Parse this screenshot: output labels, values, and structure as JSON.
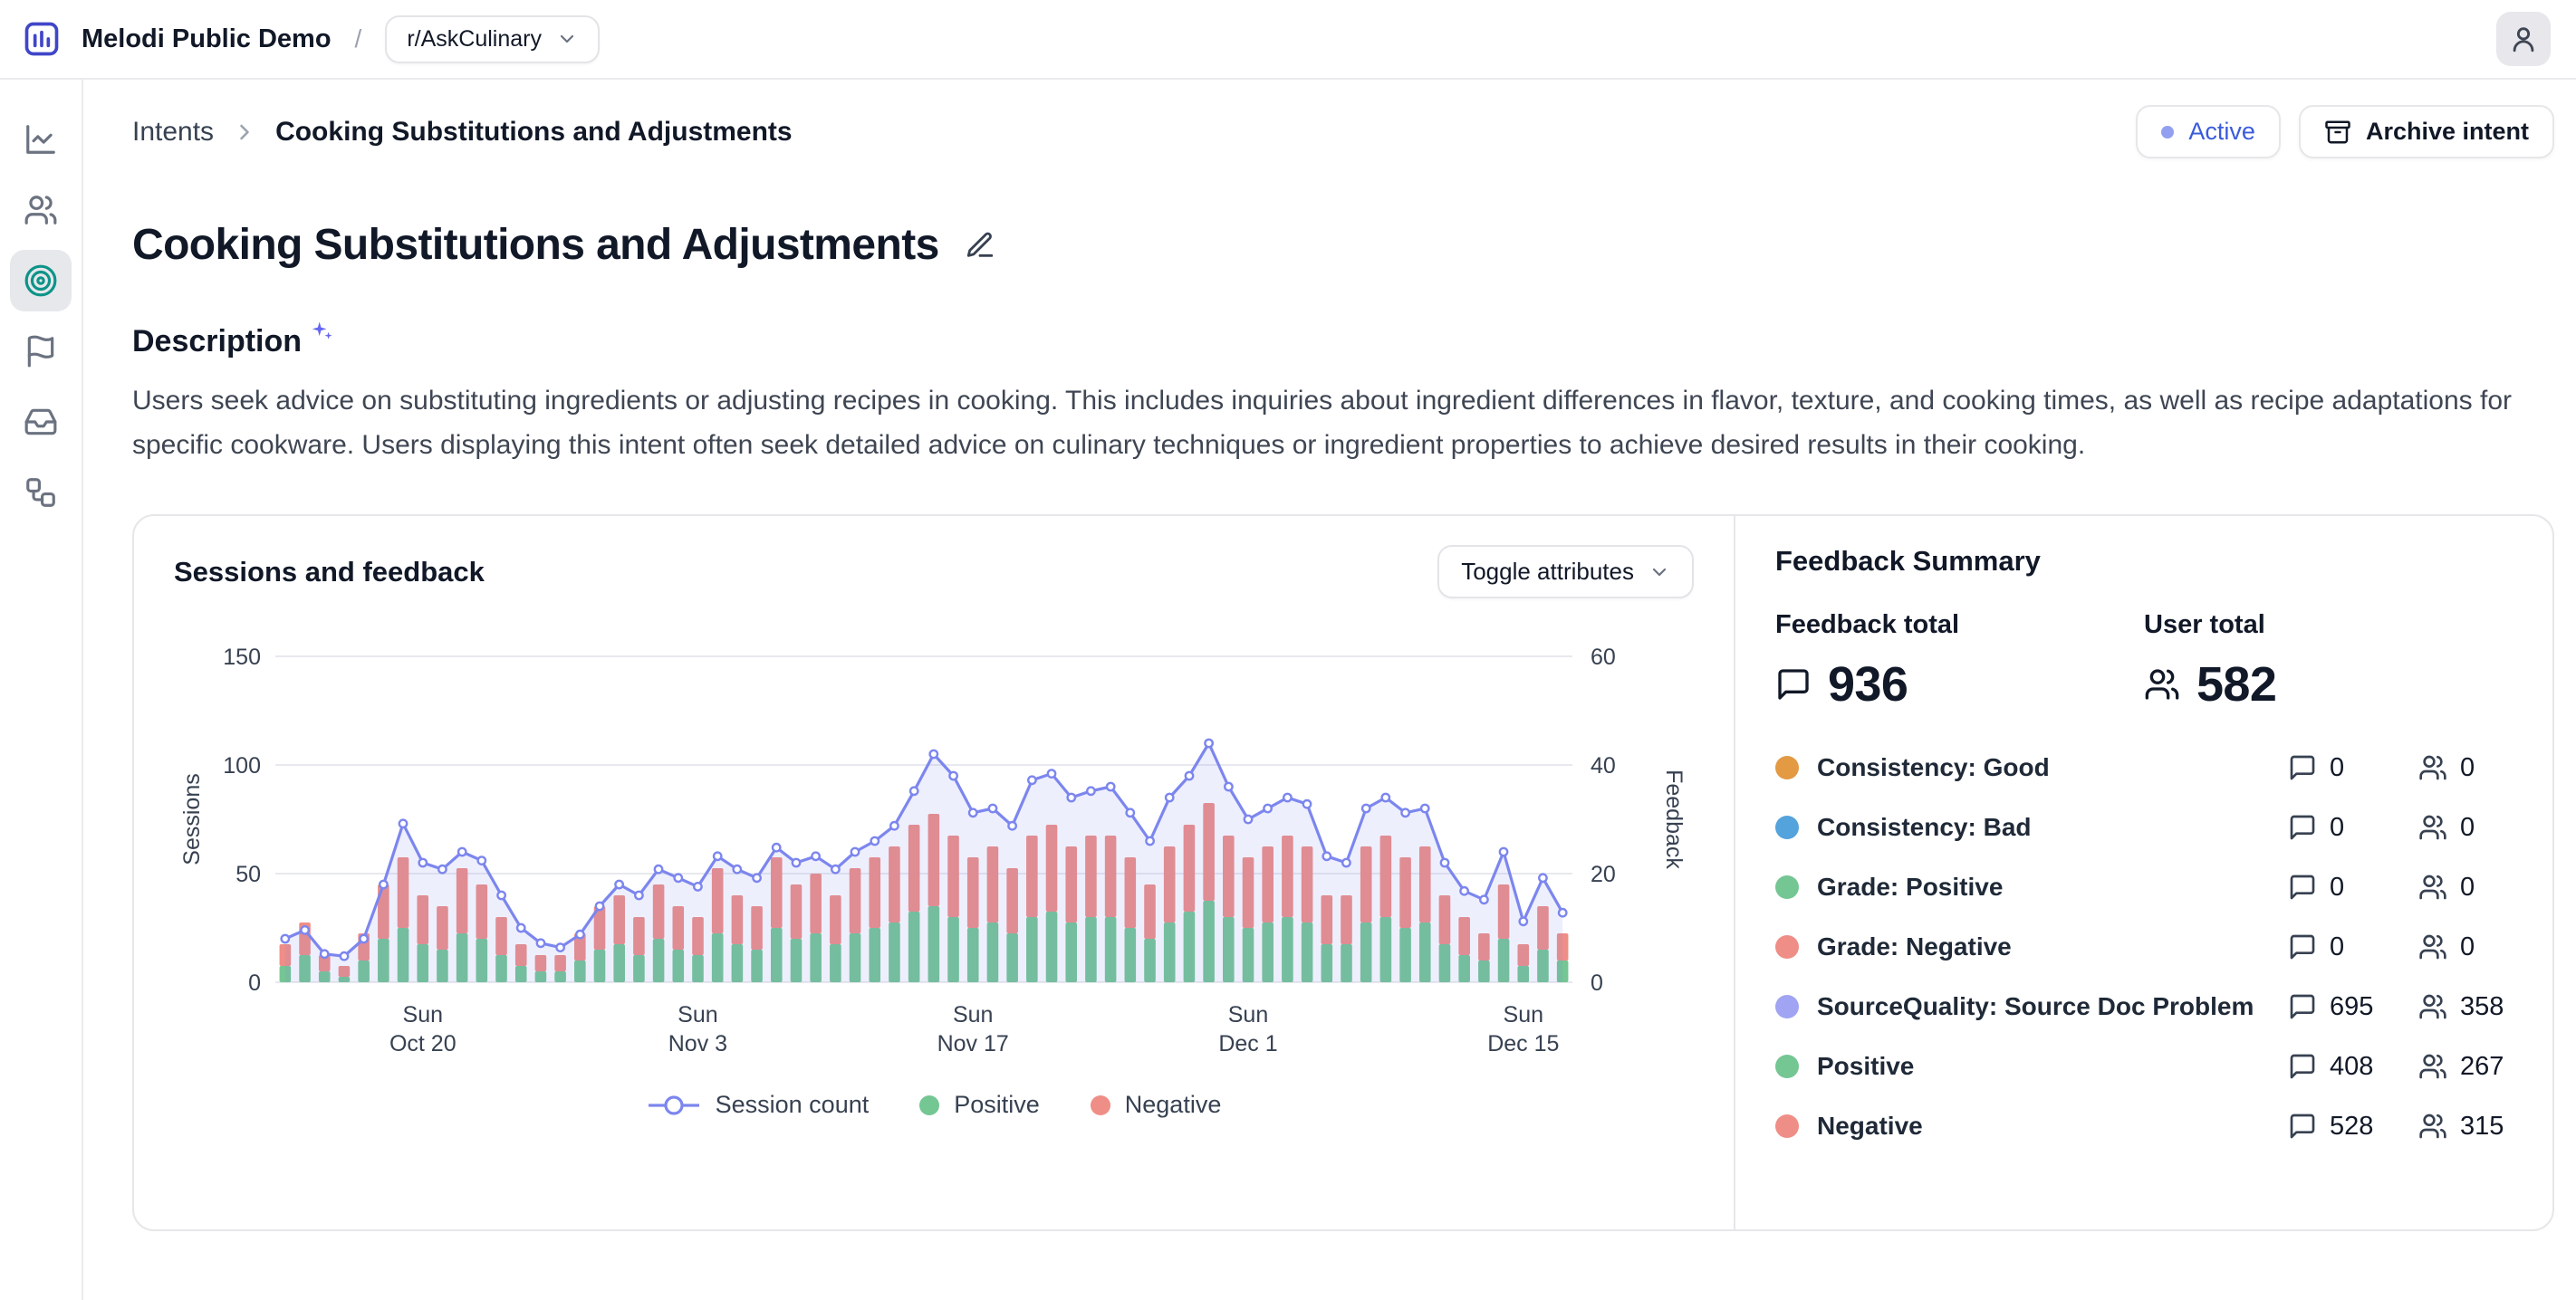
{
  "topbar": {
    "app_name": "Melodi Public Demo",
    "separator": "/",
    "project": "r/AskCulinary"
  },
  "sidebar": {
    "items": [
      {
        "name": "analytics",
        "active": false
      },
      {
        "name": "users",
        "active": false
      },
      {
        "name": "intents",
        "active": true
      },
      {
        "name": "flags",
        "active": false
      },
      {
        "name": "inbox",
        "active": false
      },
      {
        "name": "workflows",
        "active": false
      }
    ]
  },
  "breadcrumb": {
    "parent": "Intents",
    "current": "Cooking Substitutions and Adjustments"
  },
  "actions": {
    "status": "Active",
    "archive": "Archive intent"
  },
  "page": {
    "title": "Cooking Substitutions and Adjustments"
  },
  "description": {
    "heading": "Description",
    "body": "Users seek advice on substituting ingredients or adjusting recipes in cooking. This includes inquiries about ingredient differences in flavor, texture, and cooking times, as well as recipe adaptations for specific cookware. Users displaying this intent often seek detailed advice on culinary techniques or ingredient properties to achieve desired results in their cooking."
  },
  "sessions_card": {
    "title": "Sessions and feedback",
    "toggle": "Toggle attributes"
  },
  "legend": [
    {
      "label": "Session count",
      "marker": "line-circle",
      "color": "#7c86ee"
    },
    {
      "label": "Positive",
      "marker": "dot",
      "color": "#74c693"
    },
    {
      "label": "Negative",
      "marker": "dot",
      "color": "#ef8e86"
    }
  ],
  "feedback_summary": {
    "heading": "Feedback Summary",
    "feedback_total": {
      "label": "Feedback total",
      "value": "936",
      "icon": "message-icon"
    },
    "user_total": {
      "label": "User total",
      "value": "582",
      "icon": "users-icon"
    },
    "rows": [
      {
        "label": "Consistency: Good",
        "color": "#e39a43",
        "feedback": "0",
        "users": "0"
      },
      {
        "label": "Consistency: Bad",
        "color": "#54a3dc",
        "feedback": "0",
        "users": "0"
      },
      {
        "label": "Grade: Positive",
        "color": "#74c693",
        "feedback": "0",
        "users": "0"
      },
      {
        "label": "Grade: Negative",
        "color": "#ef8e86",
        "feedback": "0",
        "users": "0"
      },
      {
        "label": "SourceQuality: Source Doc Problem",
        "color": "#a0a4f2",
        "feedback": "695",
        "users": "358"
      },
      {
        "label": "Positive",
        "color": "#74c693",
        "feedback": "408",
        "users": "267"
      },
      {
        "label": "Negative",
        "color": "#ef8e86",
        "feedback": "528",
        "users": "315"
      }
    ]
  },
  "chart_data": {
    "type": "bar",
    "subtype": "stacked daily bars (Positive/Negative feedback, right axis) with session-count line (left axis)",
    "title": "Sessions and feedback",
    "grid": true,
    "legend_position": "bottom",
    "left_axis": {
      "label": "Sessions",
      "ticks": [
        0,
        50,
        100,
        150
      ],
      "range": [
        0,
        150
      ]
    },
    "right_axis": {
      "label": "Feedback",
      "ticks": [
        0,
        20,
        40,
        60
      ],
      "range": [
        0,
        60
      ]
    },
    "x": [
      "Oct 13",
      "Oct 14",
      "Oct 15",
      "Oct 16",
      "Oct 17",
      "Oct 18",
      "Oct 19",
      "Oct 20",
      "Oct 21",
      "Oct 22",
      "Oct 23",
      "Oct 24",
      "Oct 25",
      "Oct 26",
      "Oct 27",
      "Oct 28",
      "Oct 29",
      "Oct 30",
      "Oct 31",
      "Nov 1",
      "Nov 2",
      "Nov 3",
      "Nov 4",
      "Nov 5",
      "Nov 6",
      "Nov 7",
      "Nov 8",
      "Nov 9",
      "Nov 10",
      "Nov 11",
      "Nov 12",
      "Nov 13",
      "Nov 14",
      "Nov 15",
      "Nov 16",
      "Nov 17",
      "Nov 18",
      "Nov 19",
      "Nov 20",
      "Nov 21",
      "Nov 22",
      "Nov 23",
      "Nov 24",
      "Nov 25",
      "Nov 26",
      "Nov 27",
      "Nov 28",
      "Nov 29",
      "Nov 30",
      "Dec 1",
      "Dec 2",
      "Dec 3",
      "Dec 4",
      "Dec 5",
      "Dec 6",
      "Dec 7",
      "Dec 8",
      "Dec 9",
      "Dec 10",
      "Dec 11",
      "Dec 12",
      "Dec 13",
      "Dec 14",
      "Dec 15",
      "Dec 16",
      "Dec 17"
    ],
    "x_ticks": [
      {
        "index": 7,
        "line1": "Sun",
        "line2": "Oct 20"
      },
      {
        "index": 21,
        "line1": "Sun",
        "line2": "Nov 3"
      },
      {
        "index": 35,
        "line1": "Sun",
        "line2": "Nov 17"
      },
      {
        "index": 49,
        "line1": "Sun",
        "line2": "Dec 1"
      },
      {
        "index": 63,
        "line1": "Sun",
        "line2": "Dec 15"
      }
    ],
    "series": [
      {
        "name": "Session count",
        "type": "line",
        "axis": "left",
        "color": "#7c86ee",
        "values": [
          20,
          24,
          13,
          12,
          20,
          45,
          73,
          55,
          52,
          60,
          56,
          40,
          25,
          18,
          16,
          22,
          35,
          45,
          40,
          52,
          48,
          44,
          58,
          52,
          48,
          62,
          55,
          58,
          52,
          60,
          65,
          72,
          88,
          105,
          95,
          78,
          80,
          72,
          93,
          96,
          85,
          88,
          90,
          78,
          65,
          85,
          95,
          110,
          90,
          75,
          80,
          85,
          82,
          58,
          55,
          80,
          85,
          78,
          80,
          55,
          42,
          38,
          60,
          28,
          48,
          32
        ]
      },
      {
        "name": "Positive",
        "type": "bar",
        "axis": "right",
        "color": "#74c693",
        "values": [
          3,
          5,
          2,
          1,
          4,
          8,
          10,
          7,
          6,
          9,
          8,
          5,
          3,
          2,
          2,
          4,
          6,
          7,
          5,
          8,
          6,
          5,
          9,
          7,
          6,
          10,
          8,
          9,
          7,
          9,
          10,
          11,
          13,
          14,
          12,
          10,
          11,
          9,
          12,
          13,
          11,
          12,
          12,
          10,
          8,
          11,
          13,
          15,
          12,
          10,
          11,
          12,
          11,
          7,
          7,
          11,
          12,
          10,
          11,
          7,
          5,
          4,
          8,
          3,
          6,
          4
        ]
      },
      {
        "name": "Negative",
        "type": "bar",
        "axis": "right",
        "color": "#ef8e86",
        "values": [
          4,
          6,
          3,
          2,
          5,
          10,
          13,
          9,
          8,
          12,
          10,
          7,
          4,
          3,
          3,
          5,
          8,
          9,
          7,
          10,
          8,
          7,
          12,
          9,
          8,
          13,
          10,
          11,
          9,
          12,
          13,
          14,
          16,
          17,
          15,
          13,
          14,
          12,
          15,
          16,
          14,
          15,
          15,
          13,
          10,
          14,
          16,
          18,
          15,
          13,
          14,
          15,
          14,
          9,
          9,
          14,
          15,
          13,
          14,
          9,
          7,
          5,
          10,
          4,
          8,
          5
        ]
      }
    ]
  }
}
